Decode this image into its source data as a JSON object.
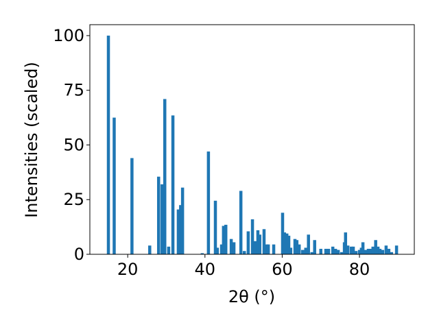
{
  "chart_data": {
    "type": "bar",
    "x_label": "2θ (°)",
    "y_label": "Intensities (scaled)",
    "color": "#1f77b4",
    "x": [
      15.0,
      16.5,
      21.1,
      25.7,
      28.0,
      28.9,
      29.6,
      30.6,
      31.7,
      33.1,
      33.7,
      34.2,
      39.3,
      40.9,
      42.7,
      43.2,
      44.3,
      44.8,
      45.4,
      46.8,
      47.5,
      49.3,
      50.2,
      51.2,
      52.3,
      53.0,
      53.7,
      54.2,
      55.3,
      56.0,
      56.4,
      57.8,
      60.1,
      60.6,
      61.2,
      61.7,
      62.2,
      63.3,
      63.8,
      64.4,
      65.3,
      66.1,
      66.8,
      67.7,
      68.4,
      70.0,
      71.3,
      72.0,
      73.1,
      73.8,
      74.5,
      75.4,
      76.1,
      76.4,
      77.0,
      77.9,
      78.4,
      79.1,
      80.0,
      80.5,
      80.9,
      81.6,
      82.3,
      82.8,
      83.5,
      84.2,
      84.8,
      85.3,
      86.0,
      86.9,
      87.6,
      88.3,
      89.6
    ],
    "values": [
      100,
      62.5,
      44,
      4,
      35.5,
      32,
      71,
      3.5,
      63.5,
      20.5,
      22.5,
      30.5,
      0.5,
      47,
      24.5,
      3,
      4.5,
      13,
      13.5,
      7,
      5.5,
      29,
      1.5,
      10.5,
      16,
      6,
      11,
      9,
      11.5,
      4.5,
      4.5,
      4.5,
      19,
      10,
      9.5,
      8.5,
      3,
      7,
      6.5,
      4.5,
      2,
      3,
      9,
      1,
      6.5,
      2.5,
      2.5,
      2.5,
      3.5,
      2.5,
      2,
      1,
      5.5,
      10,
      4,
      3.5,
      3.5,
      1.5,
      2,
      3,
      5.5,
      2,
      2.5,
      2.5,
      3.5,
      6.5,
      3.5,
      2.5,
      2,
      4,
      2.5,
      1,
      4
    ],
    "xlim": [
      10.2,
      94.2
    ],
    "ylim": [
      0,
      105
    ],
    "xticks": [
      20,
      40,
      60,
      80
    ],
    "yticks": [
      0,
      25,
      50,
      75,
      100
    ]
  }
}
